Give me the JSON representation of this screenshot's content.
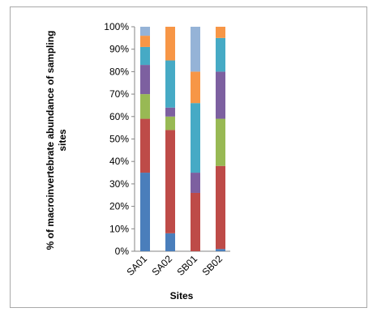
{
  "chart_data": {
    "type": "bar",
    "stacked": true,
    "normalized": true,
    "title": "",
    "xlabel": "Sites",
    "ylabel_line1": "% of macroinvertebrate abundance of sampling",
    "ylabel_line2": "sites",
    "ylim": [
      0,
      100
    ],
    "y_ticks": [
      "0%",
      "10%",
      "20%",
      "30%",
      "40%",
      "50%",
      "60%",
      "70%",
      "80%",
      "90%",
      "100%"
    ],
    "categories": [
      "SA01",
      "SA02",
      "SB01",
      "SB02"
    ],
    "grid": false,
    "legend": "none",
    "series": [
      {
        "color": "#4a7ebb",
        "values": [
          35,
          8,
          0,
          1
        ]
      },
      {
        "color": "#be4b48",
        "values": [
          24,
          46,
          26,
          37
        ]
      },
      {
        "color": "#98b954",
        "values": [
          11,
          6,
          0,
          21
        ]
      },
      {
        "color": "#7d60a0",
        "values": [
          13,
          4,
          9,
          21
        ]
      },
      {
        "color": "#46aac5",
        "values": [
          8,
          21,
          31,
          15
        ]
      },
      {
        "color": "#f79646",
        "values": [
          5,
          15,
          14,
          5
        ]
      },
      {
        "color": "#95b3d7",
        "values": [
          4,
          0,
          20,
          0
        ]
      }
    ]
  }
}
